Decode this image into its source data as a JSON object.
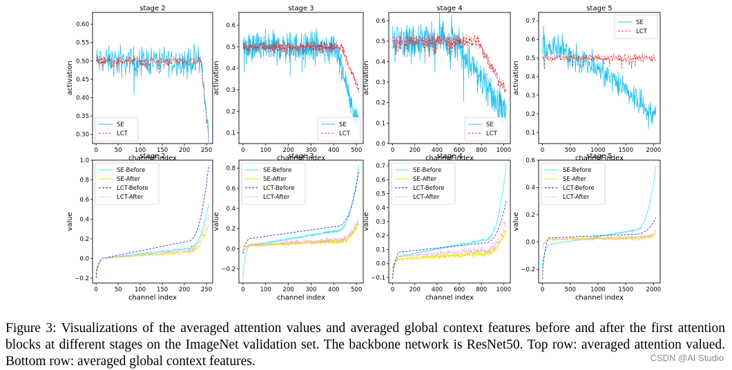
{
  "caption": "Figure 3: Visualizations of the averaged attention values and averaged global context features before and after the first attention blocks at different stages on the ImageNet validation set. The backbone network is ResNet50. Top row: averaged attention valued. Bottom row: averaged global context features.",
  "watermark": "CSDN @AI Studio",
  "colors": {
    "se": "#1fc0f0",
    "lct_top": "#e8343a",
    "se_before": "#34e8f5",
    "se_after": "#f2e600",
    "lct_before": "#1a1ab4",
    "lct_after": "#e6a8e6"
  },
  "chart_data": [
    {
      "type": "line",
      "title": "stage 2",
      "xlabel": "channel index",
      "ylabel": "activation",
      "xlim": [
        -8,
        264
      ],
      "ylim": [
        0.275,
        0.632
      ],
      "xticks": [
        0,
        50,
        100,
        150,
        200,
        250
      ],
      "yticks": [
        0.3,
        0.35,
        0.4,
        0.45,
        0.5,
        0.55,
        0.6
      ],
      "ytick_labels": [
        "0.30",
        "0.35",
        "0.40",
        "0.45",
        "0.50",
        "0.55",
        "0.60"
      ],
      "legend": "lower-left",
      "n_channels": 256,
      "series": [
        {
          "name": "SE",
          "kind": "se_attn",
          "center": 0.5,
          "noise": 0.035,
          "drop_at": 0.93,
          "drop_to": 0.31
        },
        {
          "name": "LCT",
          "kind": "lct_attn",
          "center": 0.5,
          "noise": 0.012,
          "drop_at": 0.93,
          "drop_to": 0.29
        }
      ]
    },
    {
      "type": "line",
      "title": "stage 3",
      "xlabel": "channel index",
      "ylabel": "activation",
      "xlim": [
        -18,
        530
      ],
      "ylim": [
        0.05,
        0.66
      ],
      "xticks": [
        0,
        100,
        200,
        300,
        400,
        500
      ],
      "yticks": [
        0.1,
        0.2,
        0.3,
        0.4,
        0.5,
        0.6
      ],
      "ytick_labels": [
        "0.1",
        "0.2",
        "0.3",
        "0.4",
        "0.5",
        "0.6"
      ],
      "legend": "lower-right",
      "n_channels": 512,
      "series": [
        {
          "name": "SE",
          "kind": "se_attn",
          "center": 0.5,
          "noise": 0.06,
          "drop_at": 0.8,
          "drop_to": 0.12
        },
        {
          "name": "LCT",
          "kind": "lct_attn",
          "center": 0.5,
          "noise": 0.02,
          "drop_at": 0.85,
          "drop_to": 0.3
        }
      ]
    },
    {
      "type": "line",
      "title": "stage 4",
      "xlabel": "channel index",
      "ylabel": "activation",
      "xlim": [
        -35,
        1060
      ],
      "ylim": [
        0.0,
        0.64
      ],
      "xticks": [
        0,
        200,
        400,
        600,
        800,
        1000
      ],
      "yticks": [
        0.0,
        0.1,
        0.2,
        0.3,
        0.4,
        0.5,
        0.6
      ],
      "ytick_labels": [
        "0.0",
        "0.1",
        "0.2",
        "0.3",
        "0.4",
        "0.5",
        "0.6"
      ],
      "legend": "lower-right",
      "n_channels": 1024,
      "series": [
        {
          "name": "SE",
          "kind": "se_attn",
          "center": 0.5,
          "noise": 0.09,
          "drop_at": 0.55,
          "drop_to": 0.15
        },
        {
          "name": "LCT",
          "kind": "lct_attn",
          "center": 0.5,
          "noise": 0.035,
          "drop_at": 0.75,
          "drop_to": 0.25
        }
      ]
    },
    {
      "type": "line",
      "title": "stage 5",
      "xlabel": "channel index",
      "ylabel": "activation",
      "xlim": [
        -70,
        2120
      ],
      "ylim": [
        0.04,
        0.745
      ],
      "xticks": [
        0,
        500,
        1000,
        1500,
        2000
      ],
      "yticks": [
        0.1,
        0.2,
        0.3,
        0.4,
        0.5,
        0.6,
        0.7
      ],
      "ytick_labels": [
        "0.1",
        "0.2",
        "0.3",
        "0.4",
        "0.5",
        "0.6",
        "0.7"
      ],
      "legend": "upper-right",
      "n_channels": 2048,
      "series": [
        {
          "name": "SE",
          "kind": "se_trend",
          "start": 0.56,
          "end": 0.18,
          "noise": 0.07
        },
        {
          "name": "LCT",
          "kind": "lct_attn",
          "center": 0.5,
          "noise": 0.02,
          "drop_at": 1.0,
          "drop_to": 0.5
        }
      ]
    },
    {
      "type": "line",
      "title": "stage 2",
      "xlabel": "channel index",
      "ylabel": "value",
      "xlim": [
        -8,
        264
      ],
      "ylim": [
        -0.25,
        1.0
      ],
      "xticks": [
        0,
        50,
        100,
        150,
        200,
        250
      ],
      "yticks": [
        -0.2,
        0.0,
        0.2,
        0.4,
        0.6,
        0.8,
        1.0
      ],
      "ytick_labels": [
        "−0.2",
        "0.0",
        "0.2",
        "0.4",
        "0.6",
        "0.8",
        "1.0"
      ],
      "legend": "upper-left",
      "n_channels": 256,
      "series": [
        {
          "name": "SE-Before",
          "kind": "sorted",
          "start": -0.18,
          "mid": 0.0,
          "end": 0.55,
          "noise": 0.01
        },
        {
          "name": "SE-After",
          "kind": "sorted",
          "start": -0.15,
          "mid": 0.0,
          "end": 0.35,
          "noise": 0.015
        },
        {
          "name": "LCT-Before",
          "kind": "sorted",
          "start": -0.2,
          "mid": 0.0,
          "end": 0.95,
          "noise": 0.0
        },
        {
          "name": "LCT-After",
          "kind": "sorted",
          "start": -0.12,
          "mid": 0.0,
          "end": 0.45,
          "noise": 0.02
        }
      ]
    },
    {
      "type": "line",
      "title": "stage 3",
      "xlabel": "channel index",
      "ylabel": "value",
      "xlim": [
        -18,
        530
      ],
      "ylim": [
        -0.34,
        0.88
      ],
      "xticks": [
        0,
        100,
        200,
        300,
        400,
        500
      ],
      "yticks": [
        -0.2,
        0.0,
        0.2,
        0.4,
        0.6,
        0.8
      ],
      "ytick_labels": [
        "−0.2",
        "0.0",
        "0.2",
        "0.4",
        "0.6",
        "0.8"
      ],
      "legend": "upper-left",
      "n_channels": 512,
      "series": [
        {
          "name": "SE-Before",
          "kind": "sorted",
          "start": -0.3,
          "mid": 0.03,
          "end": 0.84,
          "noise": 0.01
        },
        {
          "name": "SE-After",
          "kind": "sorted",
          "start": -0.05,
          "mid": 0.03,
          "end": 0.25,
          "noise": 0.02
        },
        {
          "name": "LCT-Before",
          "kind": "sorted",
          "start": -0.05,
          "mid": 0.1,
          "end": 0.78,
          "noise": 0.0
        },
        {
          "name": "LCT-After",
          "kind": "sorted",
          "start": -0.03,
          "mid": 0.04,
          "end": 0.3,
          "noise": 0.025
        }
      ]
    },
    {
      "type": "line",
      "title": "stage 4",
      "xlabel": "channel index",
      "ylabel": "value",
      "xlim": [
        -35,
        1060
      ],
      "ylim": [
        -0.14,
        0.74
      ],
      "xticks": [
        0,
        200,
        400,
        600,
        800,
        1000
      ],
      "yticks": [
        -0.1,
        0.0,
        0.1,
        0.2,
        0.3,
        0.4,
        0.5,
        0.6,
        0.7
      ],
      "ytick_labels": [
        "−0.1",
        "0.0",
        "0.1",
        "0.2",
        "0.3",
        "0.4",
        "0.5",
        "0.6",
        "0.7"
      ],
      "legend": "upper-left",
      "n_channels": 1024,
      "series": [
        {
          "name": "SE-Before",
          "kind": "sorted",
          "start": -0.1,
          "mid": 0.05,
          "end": 0.7,
          "noise": 0.008
        },
        {
          "name": "SE-After",
          "kind": "sorted",
          "start": -0.05,
          "mid": 0.03,
          "end": 0.25,
          "noise": 0.02
        },
        {
          "name": "LCT-Before",
          "kind": "sorted",
          "start": -0.11,
          "mid": 0.08,
          "end": 0.45,
          "noise": 0.0
        },
        {
          "name": "LCT-After",
          "kind": "sorted",
          "start": -0.03,
          "mid": 0.05,
          "end": 0.3,
          "noise": 0.025
        }
      ]
    },
    {
      "type": "line",
      "title": "stage 5",
      "xlabel": "channel index",
      "ylabel": "value",
      "xlim": [
        -70,
        2120
      ],
      "ylim": [
        -0.3,
        0.6
      ],
      "xticks": [
        0,
        500,
        1000,
        1500,
        2000
      ],
      "yticks": [
        -0.2,
        0.0,
        0.2,
        0.4,
        0.6
      ],
      "ytick_labels": [
        "−0.2",
        "0.0",
        "0.2",
        "0.4",
        "0.6"
      ],
      "legend": "upper-left",
      "n_channels": 2048,
      "series": [
        {
          "name": "SE-Before",
          "kind": "sorted",
          "start": -0.18,
          "mid": -0.02,
          "end": 0.56,
          "noise": 0.006
        },
        {
          "name": "SE-After",
          "kind": "sorted",
          "start": -0.05,
          "mid": 0.02,
          "end": 0.07,
          "noise": 0.015
        },
        {
          "name": "LCT-Before",
          "kind": "sorted",
          "start": -0.27,
          "mid": 0.03,
          "end": 0.18,
          "noise": 0.0
        },
        {
          "name": "LCT-After",
          "kind": "sorted",
          "start": -0.04,
          "mid": 0.02,
          "end": 0.08,
          "noise": 0.015
        }
      ]
    }
  ]
}
